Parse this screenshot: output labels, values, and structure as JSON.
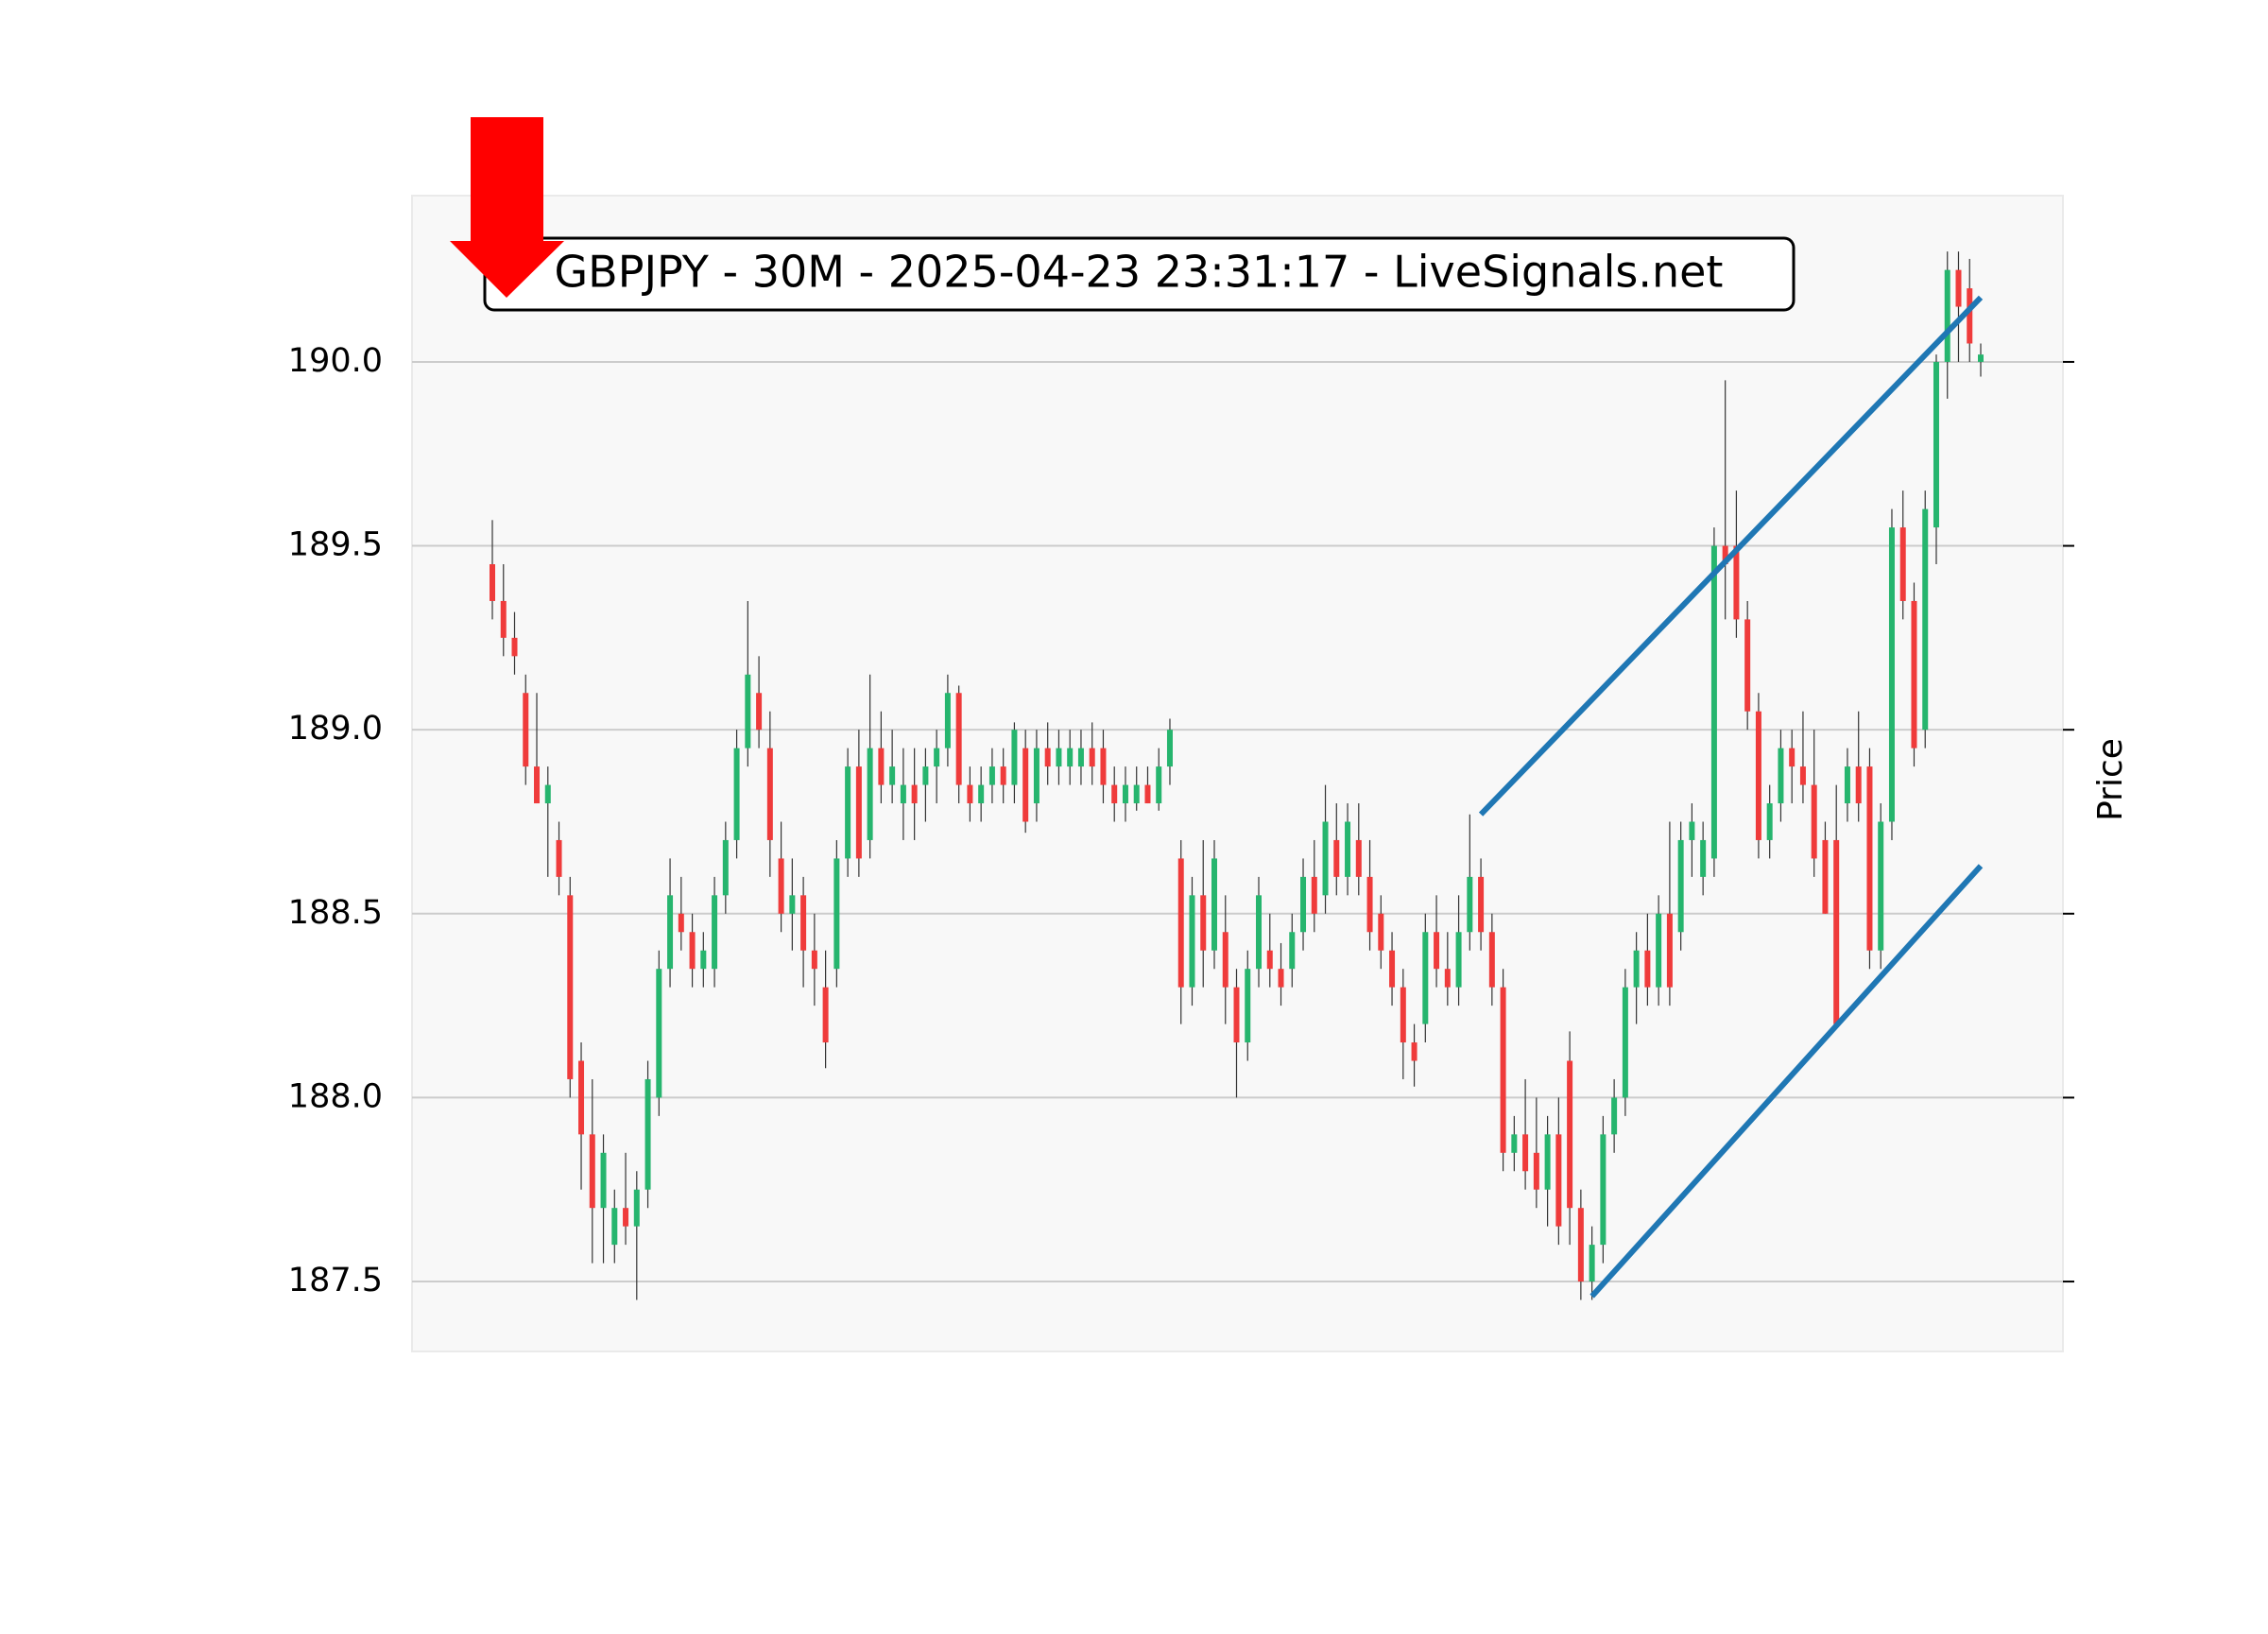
{
  "chart_data": {
    "type": "candlestick",
    "title": "GBPJPY - 30M - 2025-04-23 23:31:17 - LiveSignals.net",
    "y_label": "Price",
    "up_color": "#26b56e",
    "down_color": "#ef3b3b",
    "wick_color": "#333333",
    "grid": true,
    "ylim": [
      187.31,
      190.452
    ],
    "yticks": [
      187.5,
      {
        "value": 188.0,
        "label": "188.0"
      },
      188.5,
      {
        "value": 189.0,
        "label": "189.0"
      },
      189.5,
      {
        "value": 190.0,
        "label": "190.0"
      }
    ],
    "open": [
      189.45,
      189.35,
      189.25,
      189.1,
      188.9,
      188.8,
      188.7,
      188.55,
      188.1,
      187.9,
      187.7,
      187.6,
      187.7,
      187.65,
      187.75,
      188.0,
      188.35,
      188.5,
      188.45,
      188.35,
      188.35,
      188.55,
      188.7,
      188.95,
      189.1,
      188.95,
      188.65,
      188.5,
      188.55,
      188.4,
      188.3,
      188.35,
      188.65,
      188.9,
      188.7,
      188.95,
      188.85,
      188.8,
      188.85,
      188.85,
      188.9,
      188.95,
      189.1,
      188.85,
      188.8,
      188.85,
      188.9,
      188.85,
      188.95,
      188.8,
      188.95,
      188.9,
      188.9,
      188.9,
      188.95,
      188.95,
      188.85,
      188.8,
      188.8,
      188.85,
      188.8,
      188.9,
      188.65,
      188.3,
      188.55,
      188.4,
      188.45,
      188.3,
      188.15,
      188.35,
      188.4,
      188.35,
      188.35,
      188.45,
      188.6,
      188.55,
      188.7,
      188.6,
      188.7,
      188.6,
      188.5,
      188.4,
      188.3,
      188.15,
      188.2,
      188.45,
      188.35,
      188.3,
      188.45,
      188.6,
      188.45,
      188.3,
      187.85,
      187.9,
      187.85,
      187.75,
      187.9,
      188.1,
      187.7,
      187.5,
      187.6,
      187.9,
      188.0,
      188.3,
      188.4,
      188.3,
      188.5,
      188.45,
      188.7,
      188.6,
      188.65,
      189.5,
      189.5,
      189.3,
      189.05,
      188.7,
      188.8,
      188.95,
      188.9,
      188.85,
      188.7,
      188.7,
      188.8,
      188.9,
      188.9,
      188.4,
      188.75,
      189.55,
      189.35,
      189.0,
      189.55,
      190.0,
      190.25,
      190.2,
      190.0
    ],
    "high": [
      189.57,
      189.45,
      189.32,
      189.15,
      189.1,
      188.9,
      188.75,
      188.6,
      188.15,
      188.05,
      187.9,
      187.75,
      187.85,
      187.8,
      188.1,
      188.4,
      188.65,
      188.6,
      188.5,
      188.45,
      188.6,
      188.75,
      189.0,
      189.35,
      189.2,
      189.05,
      188.75,
      188.65,
      188.6,
      188.5,
      188.4,
      188.7,
      188.95,
      189.0,
      189.15,
      189.05,
      189.0,
      188.95,
      188.95,
      188.95,
      189.0,
      189.15,
      189.12,
      188.9,
      188.9,
      188.95,
      188.95,
      189.02,
      189.0,
      189.0,
      189.02,
      189.0,
      189.0,
      189.0,
      189.02,
      189.0,
      188.9,
      188.9,
      188.9,
      188.9,
      188.95,
      189.03,
      188.7,
      188.6,
      188.7,
      188.7,
      188.55,
      188.35,
      188.4,
      188.6,
      188.5,
      188.42,
      188.5,
      188.65,
      188.7,
      188.85,
      188.8,
      188.8,
      188.8,
      188.7,
      188.55,
      188.45,
      188.35,
      188.2,
      188.5,
      188.55,
      188.45,
      188.55,
      188.77,
      188.65,
      188.5,
      188.35,
      187.95,
      188.05,
      188.0,
      187.95,
      188.0,
      188.18,
      187.75,
      187.65,
      187.95,
      188.05,
      188.35,
      188.45,
      188.5,
      188.55,
      188.75,
      188.75,
      188.8,
      188.75,
      189.55,
      189.95,
      189.65,
      189.35,
      189.1,
      188.85,
      189.0,
      189.0,
      189.05,
      189.0,
      188.75,
      188.85,
      188.95,
      189.05,
      188.95,
      188.8,
      189.6,
      189.65,
      189.4,
      189.65,
      190.02,
      190.3,
      190.3,
      190.28,
      190.05
    ],
    "low": [
      189.3,
      189.2,
      189.15,
      188.85,
      188.8,
      188.6,
      188.55,
      188.0,
      187.75,
      187.55,
      187.55,
      187.55,
      187.6,
      187.45,
      187.7,
      187.95,
      188.3,
      188.4,
      188.3,
      188.3,
      188.3,
      188.5,
      188.65,
      188.9,
      188.95,
      188.6,
      188.45,
      188.4,
      188.3,
      188.25,
      188.08,
      188.3,
      188.6,
      188.6,
      188.65,
      188.8,
      188.8,
      188.7,
      188.7,
      188.75,
      188.8,
      188.9,
      188.8,
      188.75,
      188.75,
      188.8,
      188.8,
      188.8,
      188.72,
      188.75,
      188.85,
      188.85,
      188.85,
      188.85,
      188.85,
      188.8,
      188.75,
      188.75,
      188.78,
      188.8,
      188.78,
      188.85,
      188.2,
      188.25,
      188.3,
      188.35,
      188.2,
      188.0,
      188.1,
      188.3,
      188.3,
      188.25,
      188.3,
      188.4,
      188.45,
      188.5,
      188.55,
      188.55,
      188.55,
      188.4,
      188.35,
      188.25,
      188.05,
      188.03,
      188.15,
      188.3,
      188.25,
      188.25,
      188.4,
      188.4,
      188.25,
      187.8,
      187.8,
      187.75,
      187.7,
      187.65,
      187.6,
      187.6,
      187.45,
      187.45,
      187.55,
      187.85,
      187.95,
      188.2,
      188.25,
      188.25,
      188.25,
      188.4,
      188.6,
      188.55,
      188.6,
      189.3,
      189.25,
      189.0,
      188.65,
      188.65,
      188.75,
      188.8,
      188.8,
      188.6,
      188.5,
      188.2,
      188.75,
      188.75,
      188.35,
      188.35,
      188.7,
      189.3,
      188.9,
      188.95,
      189.45,
      189.9,
      190.0,
      190.0,
      189.96
    ],
    "close": [
      189.35,
      189.25,
      189.2,
      188.9,
      188.8,
      188.85,
      188.6,
      188.05,
      187.9,
      187.7,
      187.85,
      187.7,
      187.65,
      187.75,
      188.05,
      188.35,
      188.55,
      188.45,
      188.35,
      188.4,
      188.55,
      188.7,
      188.95,
      189.15,
      189.0,
      188.7,
      188.5,
      188.55,
      188.4,
      188.35,
      188.15,
      188.65,
      188.9,
      188.65,
      188.95,
      188.85,
      188.9,
      188.85,
      188.8,
      188.9,
      188.95,
      189.1,
      188.85,
      188.8,
      188.85,
      188.9,
      188.85,
      189.0,
      188.75,
      188.95,
      188.9,
      188.95,
      188.95,
      188.95,
      188.9,
      188.85,
      188.8,
      188.85,
      188.85,
      188.8,
      188.9,
      189.0,
      188.3,
      188.55,
      188.4,
      188.65,
      188.3,
      188.15,
      188.35,
      188.55,
      188.35,
      188.3,
      188.45,
      188.6,
      188.5,
      188.75,
      188.6,
      188.75,
      188.6,
      188.45,
      188.4,
      188.3,
      188.15,
      188.1,
      188.45,
      188.35,
      188.3,
      188.45,
      188.6,
      188.45,
      188.3,
      187.85,
      187.9,
      187.8,
      187.75,
      187.9,
      187.65,
      187.7,
      187.5,
      187.6,
      187.9,
      188.0,
      188.3,
      188.4,
      188.3,
      188.5,
      188.3,
      188.7,
      188.75,
      188.7,
      189.5,
      189.45,
      189.3,
      189.05,
      188.7,
      188.8,
      188.95,
      188.9,
      188.85,
      188.65,
      188.5,
      188.2,
      188.9,
      188.8,
      188.4,
      188.75,
      189.55,
      189.35,
      188.95,
      189.6,
      190.0,
      190.25,
      190.15,
      190.05,
      190.02
    ],
    "trendlines": [
      {
        "color": "#1f77b4",
        "x": [
          89,
          134
        ],
        "y": [
          188.77,
          190.175
        ]
      },
      {
        "color": "#1f77b4",
        "x": [
          99,
          134
        ],
        "y": [
          187.46,
          188.63
        ]
      }
    ]
  }
}
